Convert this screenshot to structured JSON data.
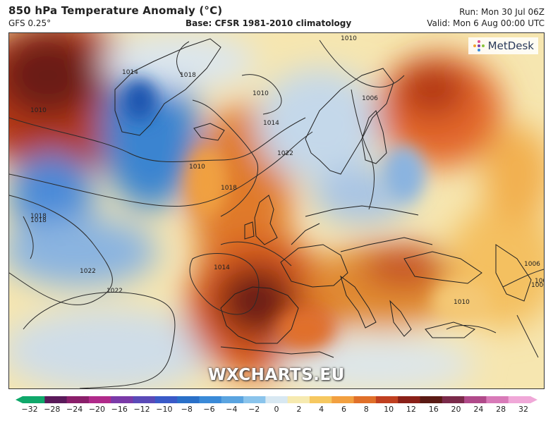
{
  "header": {
    "title": "850 hPa Temperature Anomaly (°C)",
    "model": "GFS 0.25°",
    "base": "Base: CFSR 1981-2010 climatology",
    "run": "Run: Mon 30 Jul 06Z",
    "valid": "Valid: Mon 6 Aug 00:00 UTC"
  },
  "branding": {
    "metdesk": "MetDesk",
    "watermark": "WXCHARTS.EU"
  },
  "isobar_labels": [
    "1010",
    "1018",
    "1014",
    "1018",
    "1010",
    "1014",
    "1010",
    "1022",
    "1010",
    "1018",
    "1018",
    "1022",
    "1022",
    "1014",
    "1006",
    "1006",
    "1010",
    "1002",
    "1006"
  ],
  "colorbar": {
    "ticks": [
      "−32",
      "−28",
      "−24",
      "−20",
      "−16",
      "−12",
      "−10",
      "−8",
      "−6",
      "−4",
      "−2",
      "0",
      "2",
      "4",
      "6",
      "8",
      "10",
      "12",
      "16",
      "20",
      "24",
      "28",
      "32"
    ],
    "colors": [
      "#0fa86a",
      "#5a1a5a",
      "#8a1f6a",
      "#b02a8a",
      "#7a3aa8",
      "#5a4ab8",
      "#3a5ac8",
      "#2a70c8",
      "#3a8ad8",
      "#5aa4e0",
      "#8ac4ec",
      "#d8e8f2",
      "#f6eab0",
      "#f6c860",
      "#f2a040",
      "#e0702a",
      "#c04020",
      "#8a2018",
      "#5a1a14",
      "#7a2a4a",
      "#b04a8a",
      "#d87ab8",
      "#f0a8d8"
    ]
  }
}
